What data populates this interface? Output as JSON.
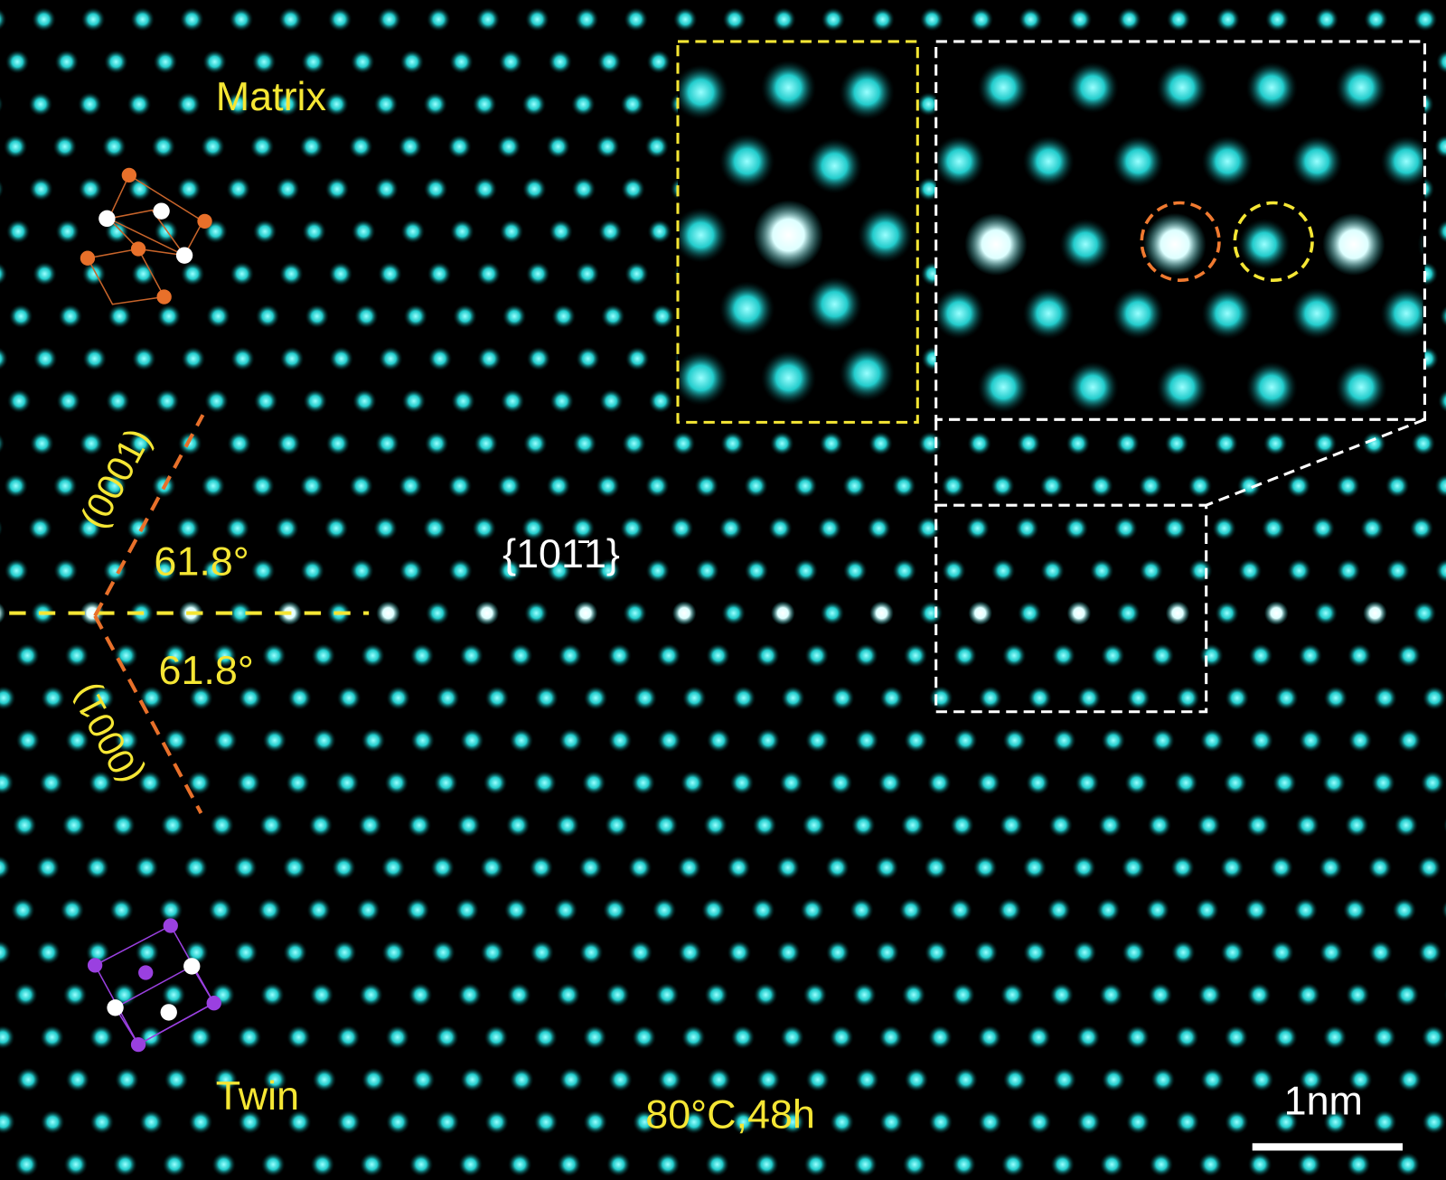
{
  "labels": {
    "matrix": "Matrix",
    "twin": "Twin",
    "plane_upper": "(0001)",
    "plane_lower": "(0001)",
    "angle_upper": "61.8°",
    "angle_lower": "61.8°",
    "boundary": "{101̄1}",
    "condition": "80°C,48h",
    "scale_bar": "1nm"
  }
}
